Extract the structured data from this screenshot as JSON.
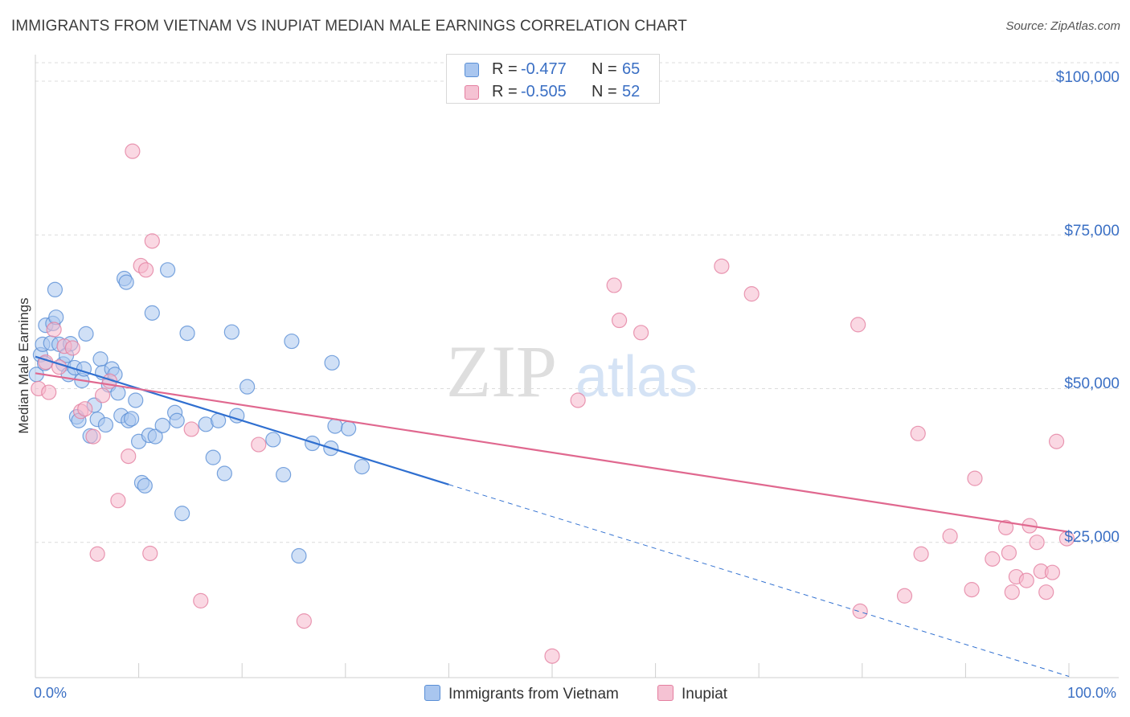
{
  "title": "IMMIGRANTS FROM VIETNAM VS INUPIAT MEDIAN MALE EARNINGS CORRELATION CHART",
  "source": "Source: ZipAtlas.com",
  "watermark": {
    "zip": "ZIP",
    "atlas": "atlas"
  },
  "colors": {
    "blue_fill": "#a9c6ef",
    "blue_stroke": "#5a8fd6",
    "blue_line": "#2f6fd0",
    "pink_fill": "#f5b8cc",
    "pink_stroke": "#e47fa0",
    "pink_line": "#e0688f",
    "tick_text": "#3a6fc4",
    "grid": "#dcdcdc"
  },
  "legend": {
    "series": [
      {
        "r_label": "R =",
        "r_value": "-0.477",
        "n_label": "N =",
        "n_value": "65"
      },
      {
        "r_label": "R =",
        "r_value": "-0.505",
        "n_label": "N =",
        "n_value": "52"
      }
    ],
    "bottom": [
      "Immigrants from Vietnam",
      "Inupiat"
    ]
  },
  "chart_data": {
    "type": "scatter",
    "title": "IMMIGRANTS FROM VIETNAM VS INUPIAT MEDIAN MALE EARNINGS CORRELATION CHART",
    "xlabel": "",
    "ylabel": "Median Male Earnings",
    "xlim": [
      0,
      100
    ],
    "ylim": [
      3000,
      103000
    ],
    "x_tick_labels": [
      "0.0%",
      "100.0%"
    ],
    "y_ticks": [
      25000,
      50000,
      75000,
      100000
    ],
    "y_tick_labels": [
      "$25,000",
      "$50,000",
      "$75,000",
      "$100,000"
    ],
    "grid": true,
    "legend_position": "top-center",
    "series": [
      {
        "name": "Immigrants from Vietnam",
        "points": [
          [
            0.1,
            52300
          ],
          [
            0.5,
            55500
          ],
          [
            0.7,
            57200
          ],
          [
            0.9,
            54100
          ],
          [
            1.0,
            60300
          ],
          [
            1.5,
            57400
          ],
          [
            1.7,
            60600
          ],
          [
            1.9,
            66100
          ],
          [
            2.0,
            61600
          ],
          [
            2.3,
            57200
          ],
          [
            2.7,
            54000
          ],
          [
            3.0,
            55400
          ],
          [
            3.2,
            52300
          ],
          [
            3.4,
            57300
          ],
          [
            3.8,
            53400
          ],
          [
            4.0,
            45400
          ],
          [
            4.2,
            44800
          ],
          [
            4.5,
            51300
          ],
          [
            4.7,
            53200
          ],
          [
            4.9,
            58900
          ],
          [
            5.3,
            42300
          ],
          [
            5.7,
            47300
          ],
          [
            6.0,
            45000
          ],
          [
            6.3,
            54800
          ],
          [
            6.5,
            52600
          ],
          [
            6.8,
            44100
          ],
          [
            7.1,
            50600
          ],
          [
            7.4,
            53200
          ],
          [
            7.7,
            52300
          ],
          [
            8.0,
            49300
          ],
          [
            8.3,
            45600
          ],
          [
            8.6,
            67900
          ],
          [
            8.8,
            67300
          ],
          [
            9.0,
            44800
          ],
          [
            9.3,
            45100
          ],
          [
            9.7,
            48100
          ],
          [
            10.0,
            41400
          ],
          [
            10.3,
            34700
          ],
          [
            10.6,
            34200
          ],
          [
            11.0,
            42400
          ],
          [
            11.3,
            62300
          ],
          [
            11.6,
            42200
          ],
          [
            12.3,
            44000
          ],
          [
            12.8,
            69300
          ],
          [
            13.5,
            46100
          ],
          [
            13.7,
            44800
          ],
          [
            14.2,
            29700
          ],
          [
            14.7,
            59000
          ],
          [
            16.5,
            44200
          ],
          [
            17.2,
            38800
          ],
          [
            17.7,
            44800
          ],
          [
            18.3,
            36200
          ],
          [
            19.0,
            59200
          ],
          [
            19.5,
            45600
          ],
          [
            20.5,
            50300
          ],
          [
            23.0,
            41700
          ],
          [
            24.0,
            36000
          ],
          [
            24.8,
            57700
          ],
          [
            25.5,
            22800
          ],
          [
            26.8,
            41100
          ],
          [
            28.6,
            40300
          ],
          [
            28.7,
            54200
          ],
          [
            29.0,
            43900
          ],
          [
            30.3,
            43500
          ],
          [
            31.6,
            37300
          ]
        ],
        "trend": {
          "x": [
            0,
            40
          ],
          "y": [
            55200,
            34400
          ]
        },
        "trend_dashed": {
          "x": [
            40,
            100
          ],
          "y": [
            34400,
            3200
          ]
        }
      },
      {
        "name": "Inupiat",
        "points": [
          [
            0.3,
            50000
          ],
          [
            1.0,
            54300
          ],
          [
            1.3,
            49400
          ],
          [
            1.8,
            59600
          ],
          [
            2.3,
            53500
          ],
          [
            2.8,
            56900
          ],
          [
            3.6,
            56600
          ],
          [
            4.4,
            46300
          ],
          [
            4.8,
            46700
          ],
          [
            5.6,
            42200
          ],
          [
            6.0,
            23100
          ],
          [
            6.5,
            48900
          ],
          [
            7.2,
            51200
          ],
          [
            8.0,
            31800
          ],
          [
            9.0,
            39000
          ],
          [
            9.4,
            88600
          ],
          [
            10.2,
            70000
          ],
          [
            10.7,
            69300
          ],
          [
            11.1,
            23200
          ],
          [
            11.3,
            74000
          ],
          [
            15.1,
            43400
          ],
          [
            16.0,
            15500
          ],
          [
            21.6,
            40900
          ],
          [
            26.0,
            12200
          ],
          [
            50.0,
            6500
          ],
          [
            52.5,
            48100
          ],
          [
            56.0,
            66800
          ],
          [
            56.5,
            61100
          ],
          [
            58.6,
            59100
          ],
          [
            66.4,
            69900
          ],
          [
            69.3,
            65400
          ],
          [
            79.6,
            60400
          ],
          [
            79.8,
            13800
          ],
          [
            84.1,
            16300
          ],
          [
            85.4,
            42700
          ],
          [
            85.7,
            23100
          ],
          [
            88.5,
            26000
          ],
          [
            90.6,
            17300
          ],
          [
            90.9,
            35400
          ],
          [
            92.6,
            22300
          ],
          [
            93.9,
            27400
          ],
          [
            94.2,
            23300
          ],
          [
            94.5,
            16900
          ],
          [
            94.9,
            19400
          ],
          [
            95.9,
            18800
          ],
          [
            96.2,
            27700
          ],
          [
            96.9,
            25000
          ],
          [
            97.3,
            20300
          ],
          [
            97.8,
            16900
          ],
          [
            98.4,
            20100
          ],
          [
            98.8,
            41400
          ],
          [
            99.8,
            25600
          ]
        ],
        "trend": {
          "x": [
            0,
            100
          ],
          "y": [
            52500,
            26700
          ]
        }
      }
    ]
  }
}
